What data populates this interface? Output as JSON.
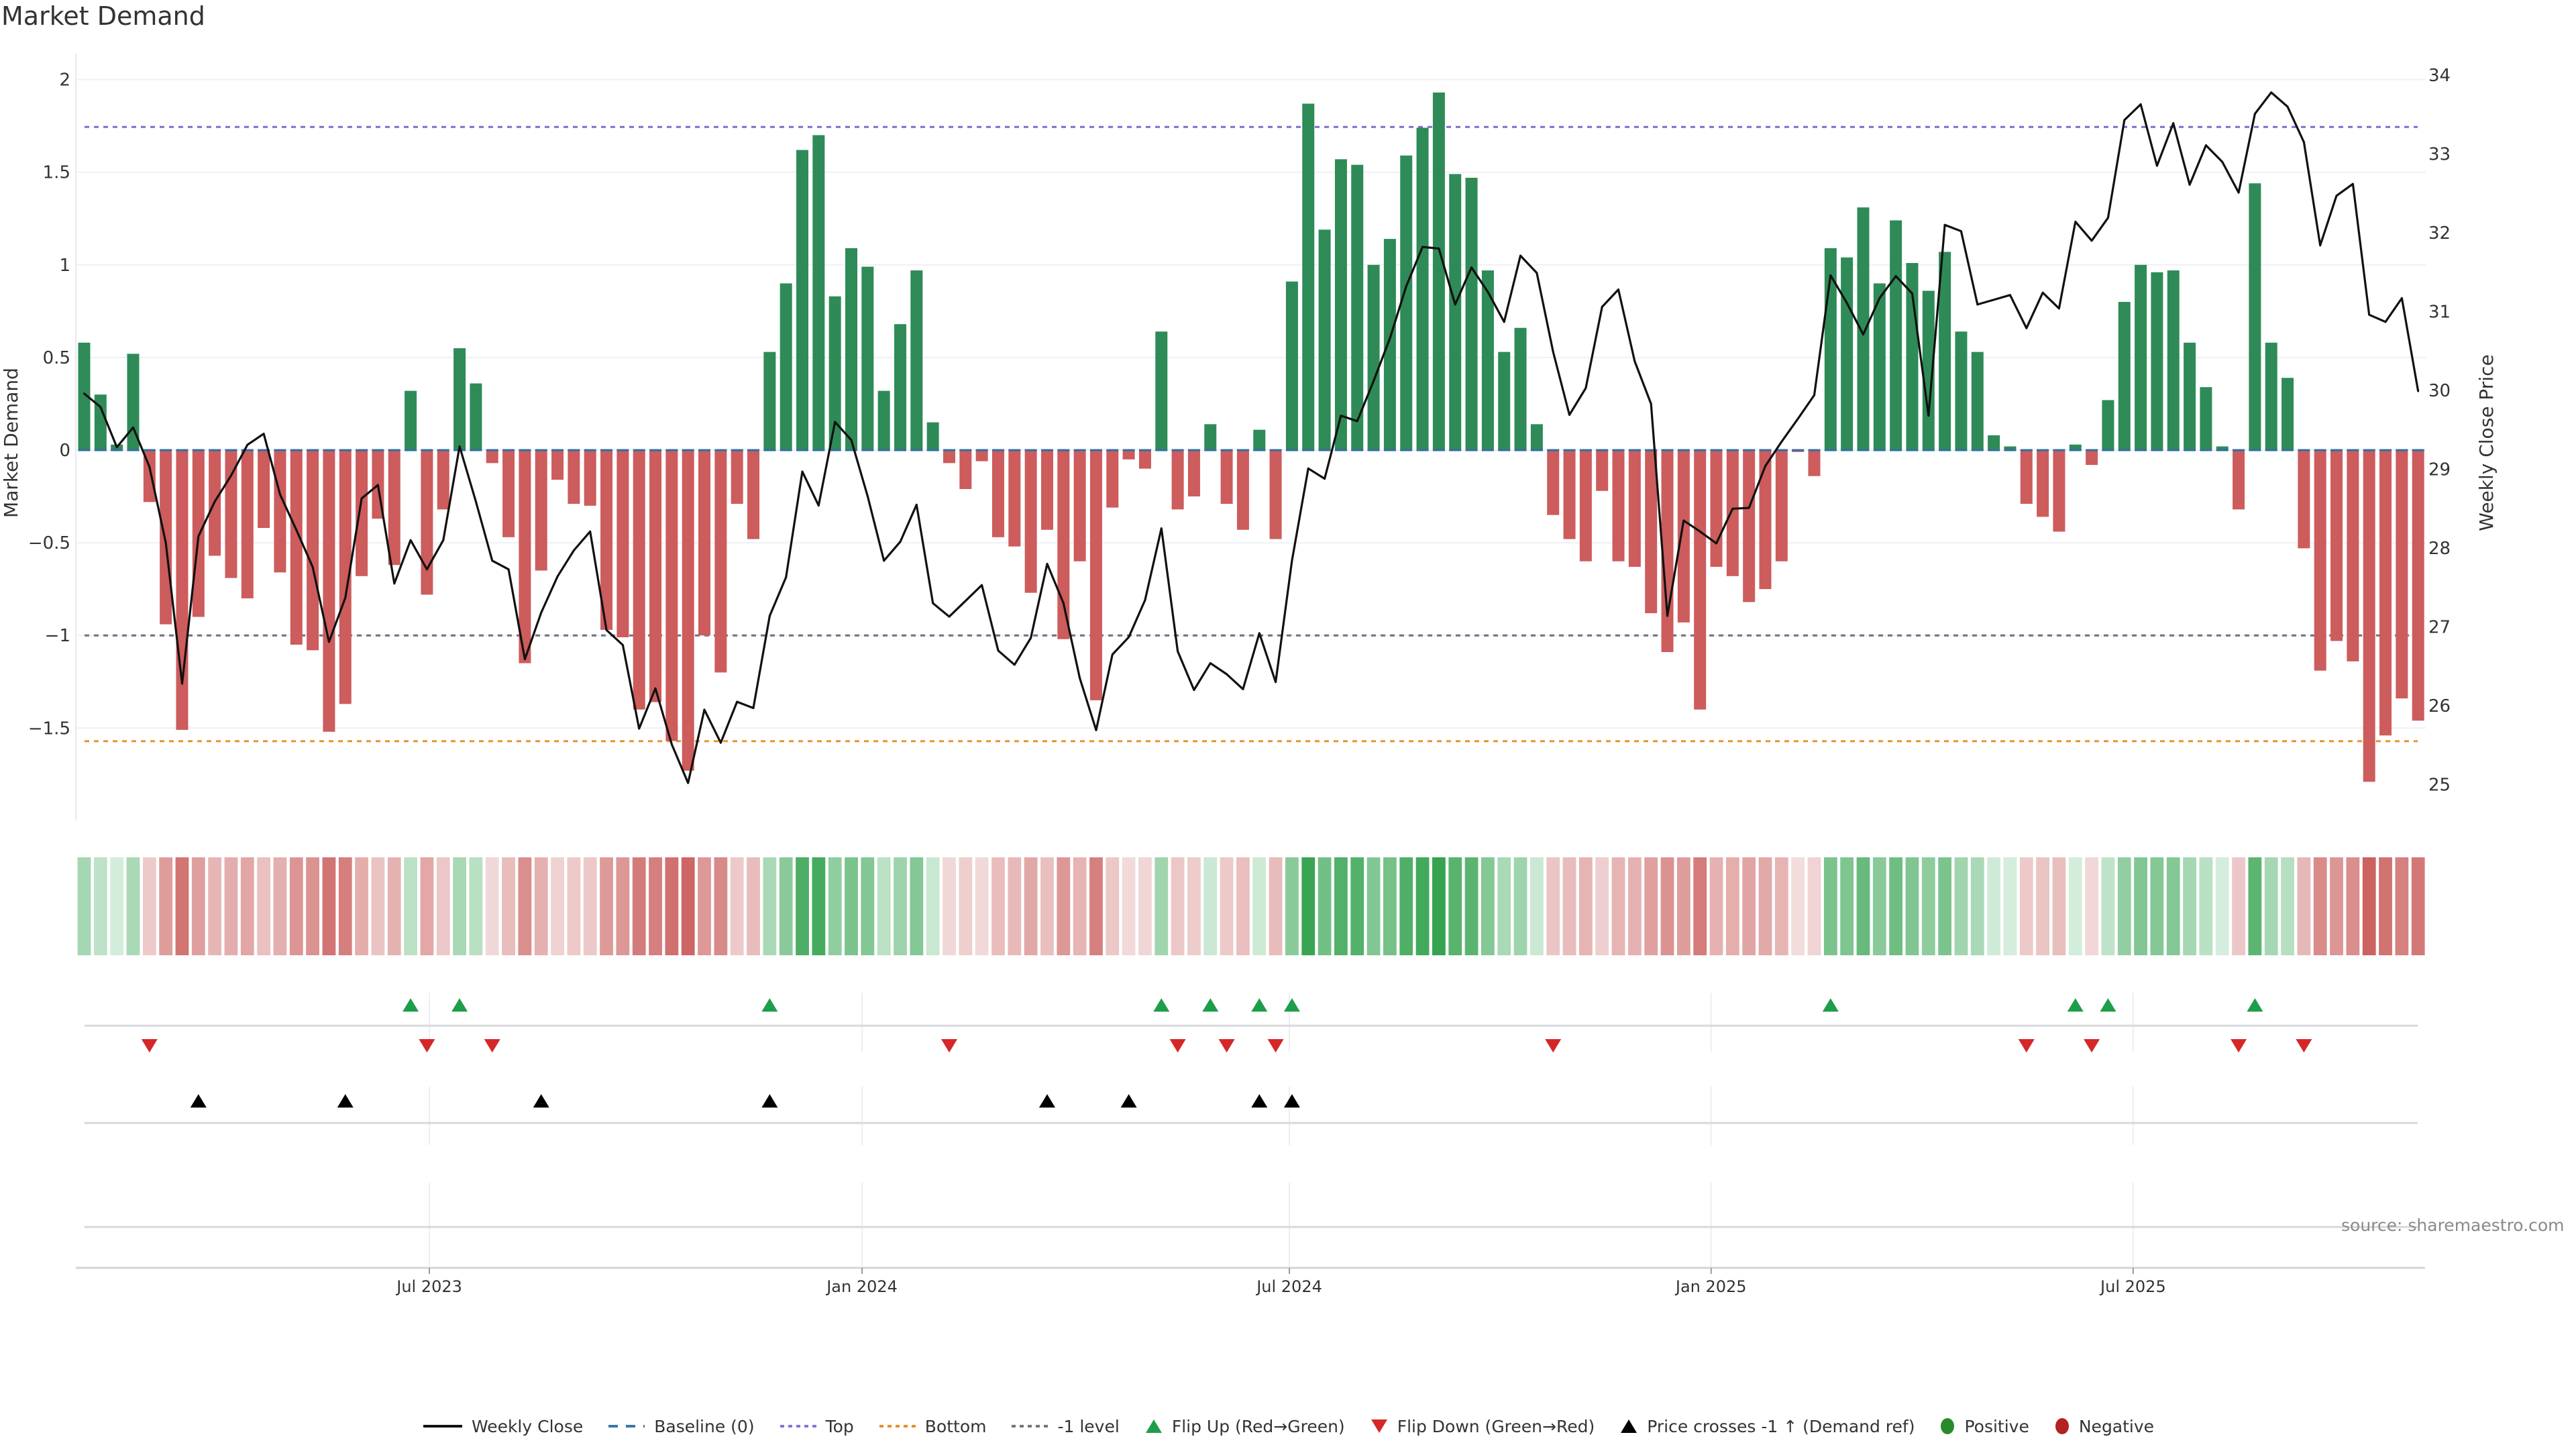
{
  "title": "Market Demand",
  "source": "source: sharemaestro.com",
  "legend": [
    {
      "label": "Weekly Close",
      "kind": "line-solid",
      "color": "#111111"
    },
    {
      "label": "Baseline (0)",
      "kind": "line-dashed",
      "color": "#3a78a8"
    },
    {
      "label": "Top",
      "kind": "line-dotted",
      "color": "#8377d4"
    },
    {
      "label": "Bottom",
      "kind": "line-dotted",
      "color": "#e8912e"
    },
    {
      "label": "-1 level",
      "kind": "line-dotted",
      "color": "#77777f"
    },
    {
      "label": "Flip Up (Red→Green)",
      "kind": "triangle-up",
      "color": "#1e9e4a"
    },
    {
      "label": "Flip Down (Green→Red)",
      "kind": "triangle-down",
      "color": "#d62728"
    },
    {
      "label": "Price crosses -1 ↑ (Demand ref)",
      "kind": "triangle-up",
      "color": "#000000"
    },
    {
      "label": "Positive",
      "kind": "dot",
      "color": "#2a8a2a"
    },
    {
      "label": "Negative",
      "kind": "dot",
      "color": "#b22222"
    }
  ],
  "colors": {
    "positive_bar": "#2e8b57",
    "negative_bar": "#cd5c5c",
    "heat_pos_light": "#d6eedd",
    "heat_pos_strong": "#36a350",
    "heat_neg_light": "#f3dddd",
    "heat_neg_strong": "#c95a58",
    "line": "#111111",
    "baseline": "#2f6fa3",
    "top": "#7b6fd0",
    "bottom": "#e8912e",
    "minus_one": "#6e6e80"
  },
  "chart_data": {
    "type": "bar",
    "title": "Market Demand",
    "ylabel": "Market Demand",
    "y2label": "Weekly Close Price",
    "ylim": [
      -1.95,
      2.15
    ],
    "y2lim": [
      24.6,
      34.5
    ],
    "yticks": [
      {
        "value": 2,
        "label": "2"
      },
      {
        "value": 1.5,
        "label": "1.5"
      },
      {
        "value": 1,
        "label": "1"
      },
      {
        "value": 0.5,
        "label": "0.5"
      },
      {
        "value": 0,
        "label": "0"
      },
      {
        "value": -0.5,
        "label": "−0.5"
      },
      {
        "value": -1,
        "label": "−1"
      },
      {
        "value": -1.5,
        "label": "−1.5"
      }
    ],
    "y2ticks": [
      {
        "value": 34,
        "label": "34"
      },
      {
        "value": 33,
        "label": "33"
      },
      {
        "value": 32,
        "label": "32"
      },
      {
        "value": 31,
        "label": "31"
      },
      {
        "value": 30,
        "label": "30"
      },
      {
        "value": 29,
        "label": "29"
      },
      {
        "value": 28,
        "label": "28"
      },
      {
        "value": 27,
        "label": "27"
      },
      {
        "value": 26,
        "label": "26"
      },
      {
        "value": 25,
        "label": "25"
      }
    ],
    "xticks": [
      {
        "week": 21.15,
        "label": "Jul 2023"
      },
      {
        "week": 47.66,
        "label": "Jan 2024"
      },
      {
        "week": 73.84,
        "label": "Jul 2024"
      },
      {
        "week": 99.68,
        "label": "Jan 2025"
      },
      {
        "week": 125.54,
        "label": "Jul 2025"
      }
    ],
    "reference_lines": {
      "baseline": 0,
      "top": 1.744,
      "bottom": -1.571,
      "minus_one": -1
    },
    "series": [
      {
        "name": "Market Demand",
        "type": "bar",
        "axis": "left",
        "values": [
          0.58,
          0.3,
          0.03,
          0.52,
          -0.28,
          -0.94,
          -1.51,
          -0.9,
          -0.57,
          -0.69,
          -0.8,
          -0.42,
          -0.66,
          -1.05,
          -1.08,
          -1.52,
          -1.37,
          -0.68,
          -0.37,
          -0.62,
          0.32,
          -0.78,
          -0.32,
          0.55,
          0.36,
          -0.07,
          -0.47,
          -1.15,
          -0.65,
          -0.16,
          -0.29,
          -0.3,
          -0.97,
          -1.01,
          -1.4,
          -1.36,
          -1.57,
          -1.73,
          -1.0,
          -1.2,
          -0.29,
          -0.48,
          0.53,
          0.9,
          1.62,
          1.7,
          0.83,
          1.09,
          0.99,
          0.32,
          0.68,
          0.97,
          0.15,
          -0.07,
          -0.21,
          -0.06,
          -0.47,
          -0.52,
          -0.77,
          -0.43,
          -1.02,
          -0.6,
          -1.35,
          -0.31,
          -0.05,
          -0.1,
          0.64,
          -0.32,
          -0.25,
          0.14,
          -0.29,
          -0.43,
          0.11,
          -0.48,
          0.91,
          1.87,
          1.19,
          1.57,
          1.54,
          1.0,
          1.14,
          1.59,
          1.74,
          1.93,
          1.49,
          1.47,
          0.97,
          0.53,
          0.66,
          0.14,
          -0.35,
          -0.48,
          -0.6,
          -0.22,
          -0.6,
          -0.63,
          -0.88,
          -1.09,
          -0.93,
          -1.4,
          -0.63,
          -0.68,
          -0.82,
          -0.75,
          -0.6,
          -0.01,
          -0.14,
          1.09,
          1.04,
          1.31,
          0.9,
          1.24,
          1.01,
          0.86,
          1.07,
          0.64,
          0.53,
          0.08,
          0.02,
          -0.29,
          -0.36,
          -0.44,
          0.03,
          -0.08,
          0.27,
          0.8,
          1.0,
          0.96,
          0.97,
          0.58,
          0.34,
          0.02,
          -0.32,
          1.44,
          0.58,
          0.39,
          -0.53,
          -1.19,
          -1.03,
          -1.14,
          -1.79,
          -1.54,
          -1.34,
          -1.46
        ]
      },
      {
        "name": "Weekly Close",
        "type": "line",
        "axis": "right",
        "values": [
          29.96,
          29.79,
          29.28,
          29.53,
          29.03,
          28.07,
          26.28,
          28.15,
          28.59,
          28.92,
          29.31,
          29.45,
          28.68,
          28.23,
          27.76,
          26.81,
          27.37,
          28.63,
          28.8,
          27.55,
          28.1,
          27.73,
          28.1,
          29.29,
          28.59,
          27.84,
          27.73,
          26.59,
          27.18,
          27.64,
          27.97,
          28.21,
          26.96,
          26.77,
          25.71,
          26.22,
          25.51,
          25.02,
          25.95,
          25.53,
          26.05,
          25.97,
          27.14,
          27.63,
          28.97,
          28.54,
          29.6,
          29.37,
          28.66,
          27.84,
          28.08,
          28.55,
          27.3,
          27.13,
          27.33,
          27.53,
          26.7,
          26.52,
          26.86,
          27.8,
          27.3,
          26.35,
          25.69,
          26.65,
          26.87,
          27.34,
          28.25,
          26.69,
          26.2,
          26.54,
          26.4,
          26.21,
          26.92,
          26.3,
          27.84,
          29.01,
          28.88,
          29.68,
          29.61,
          30.12,
          30.66,
          31.32,
          31.82,
          31.8,
          31.09,
          31.56,
          31.25,
          30.87,
          31.71,
          31.49,
          30.49,
          29.69,
          30.03,
          31.06,
          31.28,
          30.37,
          29.83,
          27.14,
          28.35,
          28.21,
          28.06,
          28.5,
          28.51,
          29.04,
          29.35,
          29.64,
          29.94,
          31.46,
          31.11,
          30.71,
          31.17,
          31.45,
          31.23,
          29.68,
          32.1,
          32.02,
          31.09,
          31.15,
          31.21,
          30.79,
          31.24,
          31.04,
          32.14,
          31.9,
          32.19,
          33.43,
          33.63,
          32.85,
          33.39,
          32.61,
          33.11,
          32.9,
          32.51,
          33.51,
          33.78,
          33.6,
          33.15,
          31.84,
          32.47,
          32.62,
          30.96,
          30.87,
          31.17,
          29.99
        ]
      }
    ],
    "markers": {
      "flip_up_weeks": [
        20,
        23,
        42,
        66,
        69,
        72,
        74,
        107,
        122,
        124,
        133
      ],
      "flip_down_weeks": [
        4,
        21,
        25,
        53,
        67,
        70,
        73,
        90,
        119,
        123,
        132,
        136
      ],
      "price_cross_weeks": [
        7,
        16,
        28,
        42,
        59,
        64,
        72,
        74
      ]
    },
    "legend_position": "bottom-center"
  }
}
